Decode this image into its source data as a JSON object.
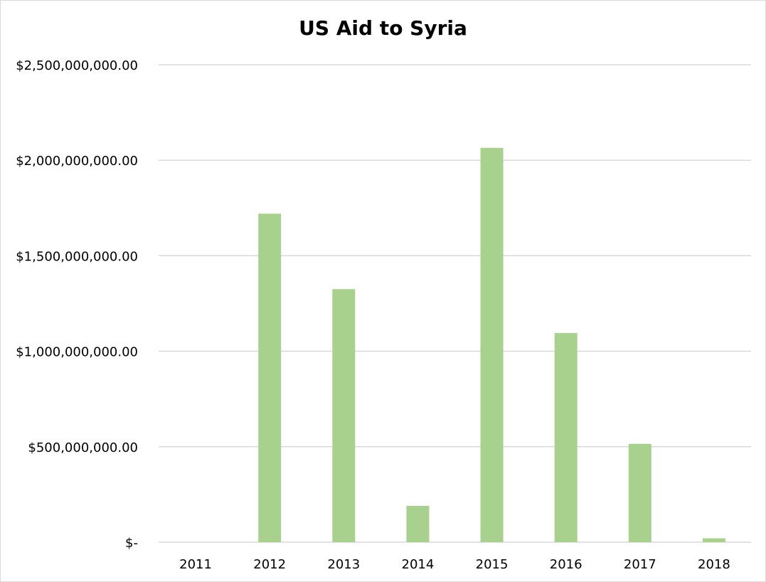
{
  "chart_data": {
    "type": "bar",
    "title": "US Aid to Syria",
    "xlabel": "",
    "ylabel": "",
    "categories": [
      "2011",
      "2012",
      "2013",
      "2014",
      "2015",
      "2016",
      "2017",
      "2018"
    ],
    "values": [
      0,
      1720000000,
      1325000000,
      190000000,
      2065000000,
      1095000000,
      515000000,
      20000000
    ],
    "ylim": [
      0,
      2500000000
    ],
    "yticks": [
      0,
      500000000,
      1000000000,
      1500000000,
      2000000000,
      2500000000
    ],
    "ytick_labels": [
      "$-",
      "$500,000,000.00",
      "$1,000,000,000.00",
      "$1,500,000,000.00",
      "$2,000,000,000.00",
      "$2,500,000,000.00"
    ],
    "grid": true,
    "legend": "none",
    "bar_color": "#a9d18e",
    "grid_color": "#d9d9d9"
  }
}
